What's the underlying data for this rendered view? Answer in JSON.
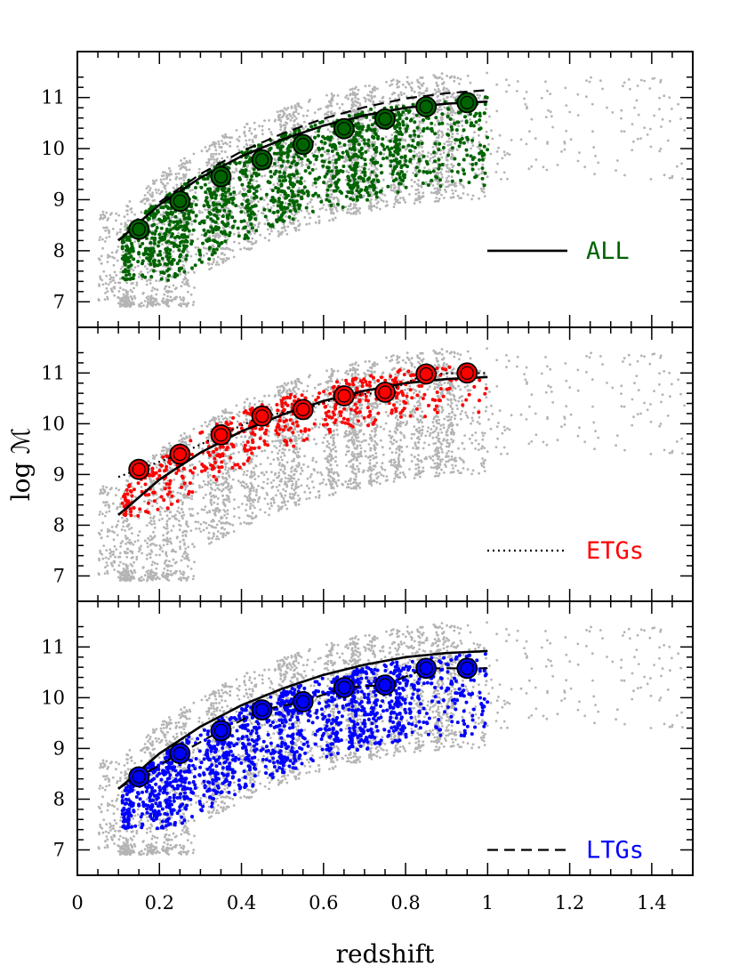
{
  "chart_data": {
    "type": "scatter",
    "xlabel": "redshift",
    "ylabel": "log ℳ",
    "xlim": [
      0,
      1.5
    ],
    "ylim": [
      6.5,
      11.9
    ],
    "x_ticks": [
      0,
      0.2,
      0.4,
      0.6,
      0.8,
      1,
      1.2,
      1.4
    ],
    "x_tick_labels": [
      "0",
      "0.2",
      "0.4",
      "0.6",
      "0.8",
      "1",
      "1.2",
      "1.4"
    ],
    "y_ticks": [
      7,
      8,
      9,
      10,
      11
    ],
    "y_tick_labels": [
      "7",
      "8",
      "9",
      "10",
      "11"
    ],
    "grid": false,
    "panels": [
      {
        "label": "ALL",
        "label_color": "#006400",
        "point_color": "#006400",
        "legend_line_style": "solid",
        "legend_line_y": 8.0,
        "binned": {
          "x": [
            0.15,
            0.25,
            0.35,
            0.45,
            0.55,
            0.65,
            0.75,
            0.85,
            0.95
          ],
          "y": [
            8.42,
            8.97,
            9.45,
            9.78,
            10.08,
            10.39,
            10.58,
            10.82,
            10.9
          ]
        },
        "curve_style": "solid"
      },
      {
        "label": "ETGs",
        "label_color": "#ff0000",
        "point_color": "#ff0000",
        "legend_line_style": "dotted",
        "legend_line_y": 7.5,
        "binned": {
          "x": [
            0.15,
            0.25,
            0.35,
            0.45,
            0.55,
            0.65,
            0.75,
            0.85,
            0.95
          ],
          "y": [
            9.1,
            9.4,
            9.78,
            10.15,
            10.28,
            10.55,
            10.62,
            10.98,
            11.0
          ]
        },
        "curve_style": "dotted"
      },
      {
        "label": "LTGs",
        "label_color": "#0000ff",
        "point_color": "#0000ff",
        "legend_line_style": "dashed",
        "legend_line_y": 7.0,
        "binned": {
          "x": [
            0.15,
            0.25,
            0.35,
            0.45,
            0.55,
            0.65,
            0.75,
            0.85,
            0.95
          ],
          "y": [
            8.44,
            8.9,
            9.35,
            9.76,
            9.92,
            10.2,
            10.25,
            10.58,
            10.58
          ]
        },
        "curve_style": "dashed"
      }
    ],
    "reference_curve": {
      "description_style": "solid",
      "x": [
        0.1,
        0.2,
        0.3,
        0.4,
        0.5,
        0.6,
        0.7,
        0.8,
        0.9,
        1.0
      ],
      "y": [
        8.2,
        8.9,
        9.43,
        9.85,
        10.18,
        10.45,
        10.65,
        10.8,
        10.88,
        10.92
      ]
    },
    "colors": {
      "background_points": "#b4b4b4"
    }
  }
}
